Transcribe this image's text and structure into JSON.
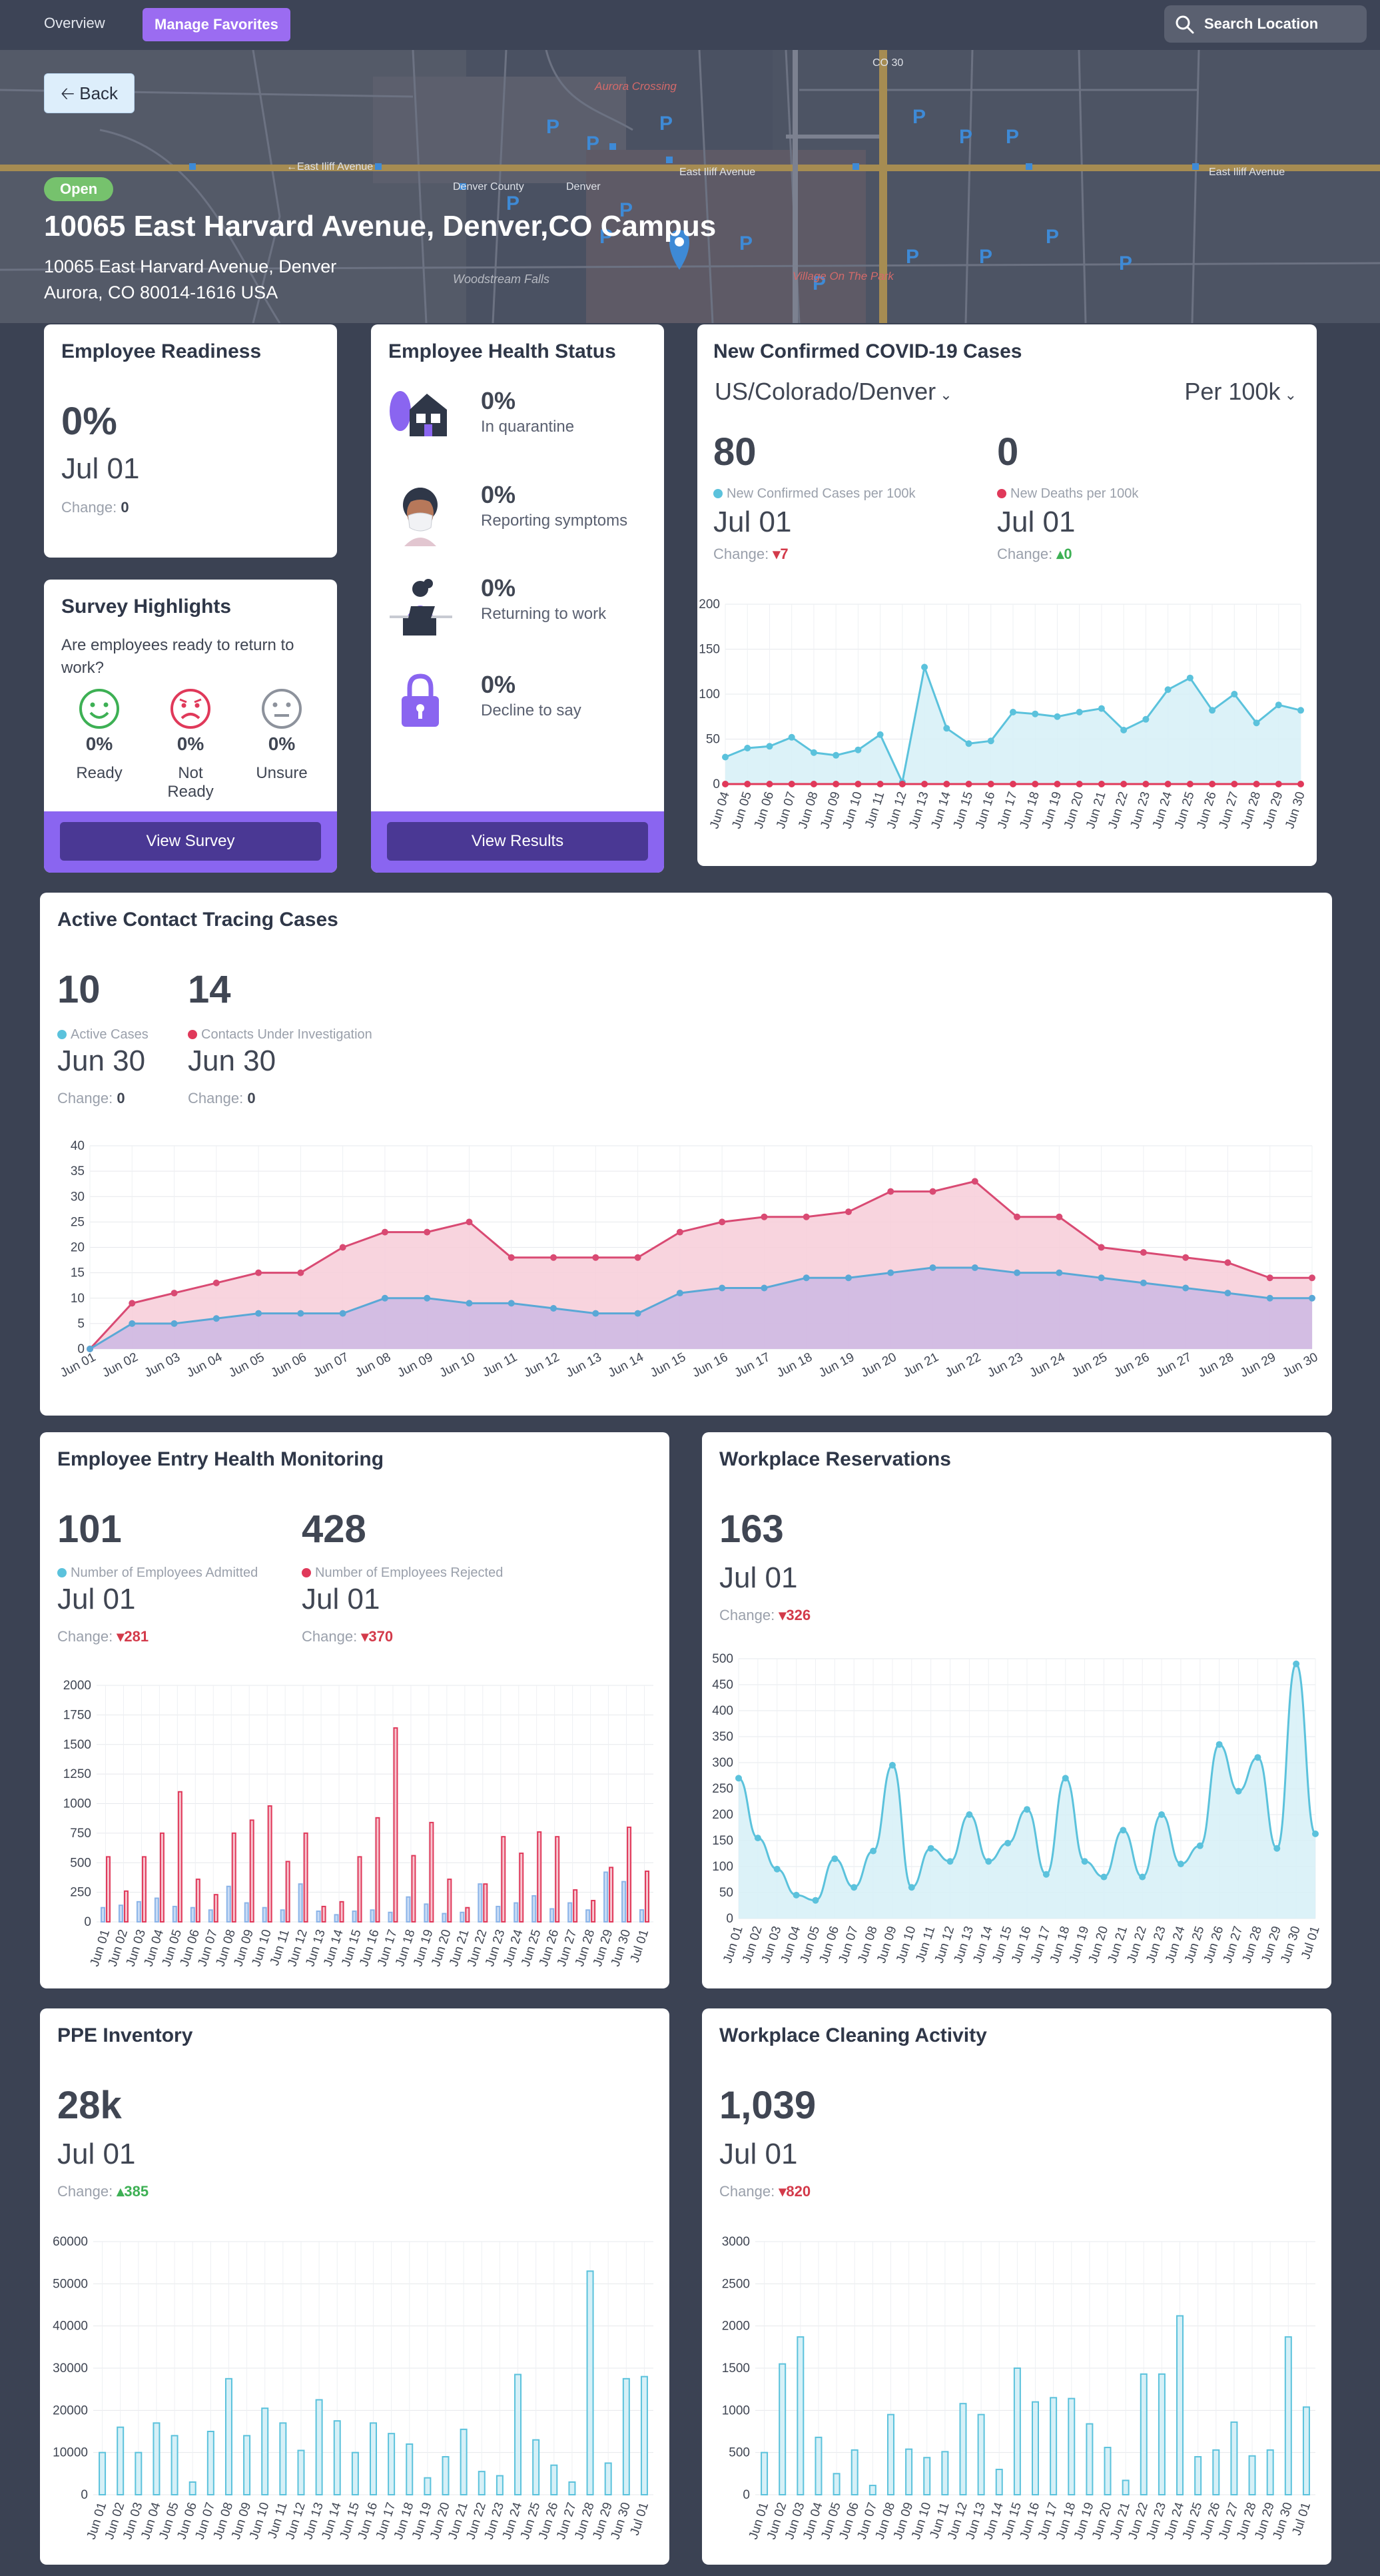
{
  "nav": {
    "overview": "Overview",
    "favorites": "Manage Favorites",
    "search_placeholder": "Search Location"
  },
  "map": {
    "labels": {
      "street1": "East Iliff Avenue",
      "street2": "←East Iliff Avenue",
      "street3": "East Iliff Avenue",
      "co30": "CO 30",
      "aurora": "Aurora Crossing",
      "village": "Village On The Park",
      "woodstream": "Woodstream Falls",
      "denver_county": "Denver County",
      "denver": "Denver"
    }
  },
  "back_label": "Back",
  "location": {
    "status": "Open",
    "title": "10065 East Harvard Avenue, Denver,CO Campus",
    "address_line1": "10065 East Harvard Avenue, Denver",
    "address_line2": "Aurora, CO 80014-1616 USA"
  },
  "readiness": {
    "title": "Employee Readiness",
    "value": "0%",
    "date": "Jul 01",
    "change_label": "Change:",
    "change": "0"
  },
  "survey": {
    "title": "Survey Highlights",
    "question": "Are employees ready to return to work?",
    "items": [
      {
        "pct": "0%",
        "label": "Ready",
        "color": "#3db054"
      },
      {
        "pct": "0%",
        "label": "Not Ready",
        "color": "#e0395a"
      },
      {
        "pct": "0%",
        "label": "Unsure",
        "color": "#8d929c"
      }
    ],
    "button": "View Survey"
  },
  "health": {
    "title": "Employee Health Status",
    "items": [
      {
        "pct": "0%",
        "label": "In quarantine"
      },
      {
        "pct": "0%",
        "label": "Reporting symptoms"
      },
      {
        "pct": "0%",
        "label": "Returning to work"
      },
      {
        "pct": "0%",
        "label": "Decline to say"
      }
    ],
    "button": "View Results"
  },
  "covid": {
    "title": "New Confirmed COVID-19 Cases",
    "region": "US/Colorado/Denver",
    "per": "Per 100k",
    "stat1": {
      "value": "80",
      "legend": "New Confirmed Cases per 100k",
      "date": "Jul 01",
      "change_label": "Change:",
      "change": "7"
    },
    "stat2": {
      "value": "0",
      "legend": "New Deaths per 100k",
      "date": "Jul 01",
      "change_label": "Change:",
      "change": "0"
    }
  },
  "tracing": {
    "title": "Active Contact Tracing Cases",
    "stat1": {
      "value": "10",
      "legend": "Active Cases",
      "date": "Jun 30",
      "change_label": "Change:",
      "change": "0"
    },
    "stat2": {
      "value": "14",
      "legend": "Contacts Under Investigation",
      "date": "Jun 30",
      "change_label": "Change:",
      "change": "0"
    }
  },
  "entry": {
    "title": "Employee Entry Health Monitoring",
    "stat1": {
      "value": "101",
      "legend": "Number of Employees Admitted",
      "date": "Jul 01",
      "change_label": "Change:",
      "change": "281"
    },
    "stat2": {
      "value": "428",
      "legend": "Number of Employees Rejected",
      "date": "Jul 01",
      "change_label": "Change:",
      "change": "370"
    }
  },
  "reservations": {
    "title": "Workplace Reservations",
    "value": "163",
    "date": "Jul 01",
    "change_label": "Change:",
    "change": "326"
  },
  "ppe": {
    "title": "PPE Inventory",
    "value": "28k",
    "date": "Jul 01",
    "change_label": "Change:",
    "change": "385"
  },
  "cleaning": {
    "title": "Workplace Cleaning Activity",
    "value": "1,039",
    "date": "Jul 01",
    "change_label": "Change:",
    "change": "820"
  },
  "colors": {
    "blue": "#5bc2dc",
    "pink": "#e0395a",
    "purple": "#8a65f0"
  },
  "chart_data": [
    {
      "id": "covid",
      "type": "line",
      "categories": [
        "Jun 04",
        "Jun 05",
        "Jun 06",
        "Jun 07",
        "Jun 08",
        "Jun 09",
        "Jun 10",
        "Jun 11",
        "Jun 12",
        "Jun 13",
        "Jun 14",
        "Jun 15",
        "Jun 16",
        "Jun 17",
        "Jun 18",
        "Jun 19",
        "Jun 20",
        "Jun 21",
        "Jun 22",
        "Jun 23",
        "Jun 24",
        "Jun 25",
        "Jun 26",
        "Jun 27",
        "Jun 28",
        "Jun 29",
        "Jun 30"
      ],
      "ylim": [
        0,
        200
      ],
      "yticks": [
        0,
        50,
        100,
        150,
        200
      ],
      "series": [
        {
          "name": "New Confirmed Cases per 100k",
          "values": [
            30,
            40,
            42,
            52,
            35,
            32,
            38,
            55,
            2,
            130,
            62,
            45,
            48,
            80,
            78,
            75,
            80,
            84,
            60,
            72,
            105,
            118,
            82,
            100,
            68,
            88,
            82
          ]
        },
        {
          "name": "New Deaths per 100k",
          "values": [
            0,
            0,
            0,
            0,
            0,
            0,
            0,
            0,
            0,
            0,
            0,
            0,
            0,
            0,
            0,
            0,
            0,
            0,
            0,
            0,
            0,
            0,
            0,
            0,
            0,
            0,
            0
          ]
        }
      ]
    },
    {
      "id": "tracing",
      "type": "area",
      "categories": [
        "Jun 01",
        "Jun 02",
        "Jun 03",
        "Jun 04",
        "Jun 05",
        "Jun 06",
        "Jun 07",
        "Jun 08",
        "Jun 09",
        "Jun 10",
        "Jun 11",
        "Jun 12",
        "Jun 13",
        "Jun 14",
        "Jun 15",
        "Jun 16",
        "Jun 17",
        "Jun 18",
        "Jun 19",
        "Jun 20",
        "Jun 21",
        "Jun 22",
        "Jun 23",
        "Jun 24",
        "Jun 25",
        "Jun 26",
        "Jun 27",
        "Jun 28",
        "Jun 29",
        "Jun 30"
      ],
      "ylim": [
        0,
        40
      ],
      "yticks": [
        0,
        5,
        10,
        15,
        20,
        25,
        30,
        35,
        40
      ],
      "series": [
        {
          "name": "Contacts Under Investigation",
          "values": [
            0,
            9,
            11,
            13,
            15,
            15,
            20,
            23,
            23,
            25,
            18,
            18,
            18,
            18,
            23,
            25,
            26,
            26,
            27,
            31,
            31,
            33,
            26,
            26,
            20,
            19,
            18,
            17,
            14,
            14
          ]
        },
        {
          "name": "Active Cases",
          "values": [
            0,
            5,
            5,
            6,
            7,
            7,
            7,
            10,
            10,
            9,
            9,
            8,
            7,
            7,
            11,
            12,
            12,
            14,
            14,
            15,
            16,
            16,
            15,
            15,
            14,
            13,
            12,
            11,
            10,
            10
          ]
        }
      ]
    },
    {
      "id": "entry",
      "type": "bar",
      "categories": [
        "Jun 01",
        "Jun 02",
        "Jun 03",
        "Jun 04",
        "Jun 05",
        "Jun 06",
        "Jun 07",
        "Jun 08",
        "Jun 09",
        "Jun 10",
        "Jun 11",
        "Jun 12",
        "Jun 13",
        "Jun 14",
        "Jun 15",
        "Jun 16",
        "Jun 17",
        "Jun 18",
        "Jun 19",
        "Jun 20",
        "Jun 21",
        "Jun 22",
        "Jun 23",
        "Jun 24",
        "Jun 25",
        "Jun 26",
        "Jun 27",
        "Jun 28",
        "Jun 29",
        "Jun 30",
        "Jul 01"
      ],
      "ylim": [
        0,
        2000
      ],
      "yticks": [
        0,
        250,
        500,
        750,
        1000,
        1250,
        1500,
        1750,
        2000
      ],
      "series": [
        {
          "name": "Number of Employees Admitted",
          "values": [
            120,
            140,
            170,
            200,
            130,
            120,
            100,
            300,
            160,
            120,
            100,
            320,
            90,
            60,
            90,
            100,
            80,
            210,
            150,
            70,
            80,
            320,
            130,
            160,
            220,
            110,
            160,
            100,
            420,
            340,
            101
          ]
        },
        {
          "name": "Number of Employees Rejected",
          "values": [
            550,
            260,
            550,
            750,
            1100,
            360,
            230,
            750,
            860,
            980,
            510,
            750,
            130,
            170,
            550,
            880,
            1640,
            560,
            840,
            360,
            120,
            320,
            720,
            580,
            760,
            720,
            270,
            180,
            460,
            800,
            428
          ]
        }
      ]
    },
    {
      "id": "reservations",
      "type": "line",
      "categories": [
        "Jun 01",
        "Jun 02",
        "Jun 03",
        "Jun 04",
        "Jun 05",
        "Jun 06",
        "Jun 07",
        "Jun 08",
        "Jun 09",
        "Jun 10",
        "Jun 11",
        "Jun 12",
        "Jun 13",
        "Jun 14",
        "Jun 15",
        "Jun 16",
        "Jun 17",
        "Jun 18",
        "Jun 19",
        "Jun 20",
        "Jun 21",
        "Jun 22",
        "Jun 23",
        "Jun 24",
        "Jun 25",
        "Jun 26",
        "Jun 27",
        "Jun 28",
        "Jun 29",
        "Jun 30",
        "Jul 01"
      ],
      "ylim": [
        0,
        500
      ],
      "yticks": [
        0,
        50,
        100,
        150,
        200,
        250,
        300,
        350,
        400,
        450,
        500
      ],
      "series": [
        {
          "name": "Workplace Reservations",
          "values": [
            270,
            155,
            95,
            45,
            35,
            115,
            60,
            130,
            295,
            60,
            135,
            110,
            200,
            110,
            145,
            210,
            85,
            270,
            110,
            80,
            170,
            80,
            200,
            105,
            140,
            335,
            245,
            310,
            135,
            490,
            163
          ]
        }
      ]
    },
    {
      "id": "ppe",
      "type": "bar",
      "categories": [
        "Jun 01",
        "Jun 02",
        "Jun 03",
        "Jun 04",
        "Jun 05",
        "Jun 06",
        "Jun 07",
        "Jun 08",
        "Jun 09",
        "Jun 10",
        "Jun 11",
        "Jun 12",
        "Jun 13",
        "Jun 14",
        "Jun 15",
        "Jun 16",
        "Jun 17",
        "Jun 18",
        "Jun 19",
        "Jun 20",
        "Jun 21",
        "Jun 22",
        "Jun 23",
        "Jun 24",
        "Jun 25",
        "Jun 26",
        "Jun 27",
        "Jun 28",
        "Jun 29",
        "Jun 30",
        "Jul 01"
      ],
      "ylim": [
        0,
        60000
      ],
      "yticks": [
        0,
        10000,
        20000,
        30000,
        40000,
        50000,
        60000
      ],
      "series": [
        {
          "name": "PPE Inventory",
          "values": [
            10000,
            16000,
            10000,
            17000,
            14000,
            3000,
            15000,
            27500,
            14000,
            20500,
            17000,
            10500,
            22500,
            17500,
            10000,
            17000,
            14500,
            12000,
            4000,
            9000,
            15500,
            5500,
            4500,
            28500,
            13000,
            7000,
            3000,
            53000,
            7500,
            27500,
            28000
          ]
        }
      ]
    },
    {
      "id": "cleaning",
      "type": "bar",
      "categories": [
        "Jun 01",
        "Jun 02",
        "Jun 03",
        "Jun 04",
        "Jun 05",
        "Jun 06",
        "Jun 07",
        "Jun 08",
        "Jun 09",
        "Jun 10",
        "Jun 11",
        "Jun 12",
        "Jun 13",
        "Jun 14",
        "Jun 15",
        "Jun 16",
        "Jun 17",
        "Jun 18",
        "Jun 19",
        "Jun 20",
        "Jun 21",
        "Jun 22",
        "Jun 23",
        "Jun 24",
        "Jun 25",
        "Jun 26",
        "Jun 27",
        "Jun 28",
        "Jun 29",
        "Jun 30",
        "Jul 01"
      ],
      "ylim": [
        0,
        3000
      ],
      "yticks": [
        0,
        500,
        1000,
        1500,
        2000,
        2500,
        3000
      ],
      "series": [
        {
          "name": "Workplace Cleaning Activity",
          "values": [
            500,
            1550,
            1870,
            680,
            250,
            530,
            110,
            950,
            540,
            440,
            510,
            1080,
            950,
            300,
            1500,
            1100,
            1150,
            1140,
            840,
            560,
            170,
            1430,
            1430,
            2120,
            450,
            530,
            860,
            460,
            530,
            1870,
            1039
          ]
        }
      ]
    }
  ]
}
